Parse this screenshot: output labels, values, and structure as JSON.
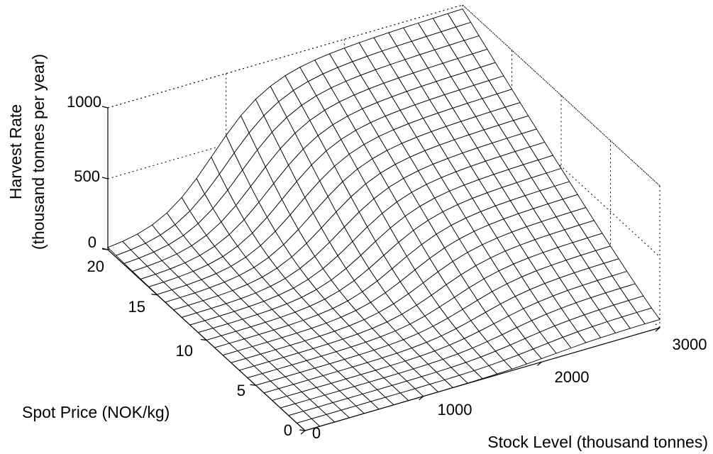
{
  "chart_data": {
    "type": "surface",
    "x": {
      "label": "Stock Level (thousand tonnes)",
      "lim": [
        0,
        3000
      ],
      "ticks": [
        0,
        1000,
        2000,
        3000
      ],
      "tick_labels": [
        "0",
        "1000",
        "2000",
        "3000"
      ]
    },
    "y": {
      "label": "Spot Price (NOK/kg)",
      "lim": [
        0,
        20
      ],
      "ticks": [
        0,
        5,
        10,
        15,
        20
      ],
      "tick_labels": [
        "0",
        "5",
        "10",
        "15",
        "20"
      ]
    },
    "z": {
      "label": "Harvest Rate",
      "label_line2": "(thousand tonnes per year)",
      "lim": [
        0,
        1000
      ],
      "ticks": [
        0,
        500,
        1000
      ],
      "tick_labels": [
        "0",
        "500",
        "1000"
      ]
    },
    "grid": true,
    "mesh": {
      "x_lines": 25,
      "y_lines": 25
    },
    "surface_samples": {
      "description": "approximate harvest rate read off the surface",
      "points": [
        {
          "stock": 0,
          "price": 0,
          "harvest": 0
        },
        {
          "stock": 0,
          "price": 20,
          "harvest": 0
        },
        {
          "stock": 500,
          "price": 20,
          "harvest": 30
        },
        {
          "stock": 1000,
          "price": 20,
          "harvest": 650
        },
        {
          "stock": 1500,
          "price": 20,
          "harvest": 840
        },
        {
          "stock": 2000,
          "price": 20,
          "harvest": 920
        },
        {
          "stock": 3000,
          "price": 20,
          "harvest": 1000
        },
        {
          "stock": 1000,
          "price": 10,
          "harvest": 100
        },
        {
          "stock": 2000,
          "price": 10,
          "harvest": 550
        },
        {
          "stock": 3000,
          "price": 10,
          "harvest": 680
        },
        {
          "stock": 1000,
          "price": 0,
          "harvest": 0
        },
        {
          "stock": 2000,
          "price": 0,
          "harvest": 30
        },
        {
          "stock": 3000,
          "price": 0,
          "harvest": 60
        }
      ]
    }
  }
}
